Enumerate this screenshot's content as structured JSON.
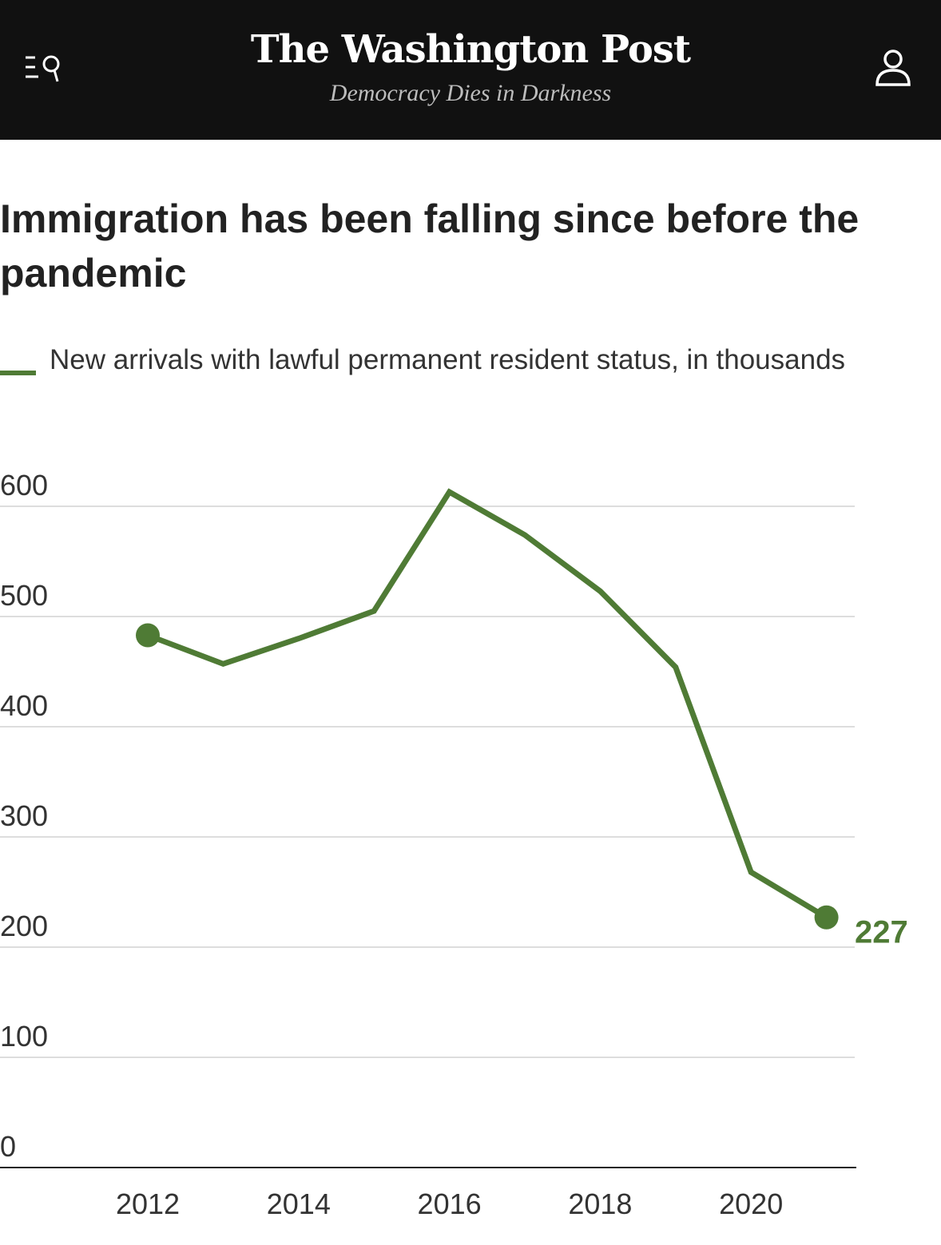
{
  "header": {
    "logo": "The Washington Post",
    "tagline": "Democracy Dies in Darkness",
    "menu_icon": "menu-search-icon",
    "user_icon": "user-icon"
  },
  "title": "Immigration has been falling since before the pandemic",
  "legend": {
    "label": "New arrivals with lawful permanent resident status, in thousands"
  },
  "colors": {
    "line": "#4f7b35",
    "grid": "#dddddd",
    "header_bg": "#111111"
  },
  "chart_data": {
    "type": "line",
    "title": "Immigration has been falling since before the pandemic",
    "xlabel": "",
    "ylabel": "",
    "x": [
      2012,
      2013,
      2014,
      2015,
      2016,
      2017,
      2018,
      2019,
      2020,
      2021
    ],
    "series": [
      {
        "name": "New arrivals with lawful permanent resident status, in thousands",
        "values": [
          483,
          457,
          480,
          505,
          613,
          574,
          523,
          454,
          268,
          227
        ]
      }
    ],
    "ylim": [
      0,
      600
    ],
    "yticks": [
      "0",
      "100",
      "200",
      "300",
      "400",
      "500",
      "600"
    ],
    "xticks": [
      "2012",
      "2014",
      "2016",
      "2018",
      "2020"
    ],
    "end_label": "227",
    "grid": true,
    "legend": "top-left"
  }
}
